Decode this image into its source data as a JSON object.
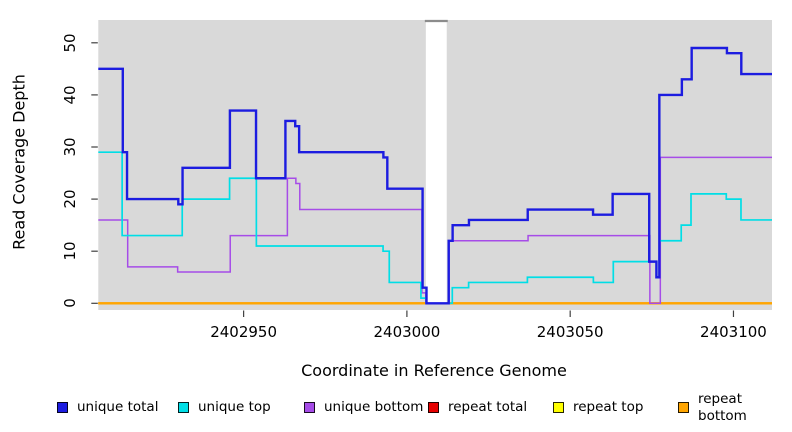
{
  "figure": {
    "x_axis_title": "Coordinate in Reference Genome",
    "y_axis_title": "Read Coverage Depth"
  },
  "chart_data": {
    "type": "line",
    "step": "post",
    "title": "",
    "xlabel": "Coordinate in Reference Genome",
    "ylabel": "Read Coverage Depth",
    "xlim": [
      2402905.5,
      2403111.8
    ],
    "ylim": [
      0,
      54.4
    ],
    "x_ticks": [
      2402950,
      2403000,
      2403050,
      2403100
    ],
    "y_ticks": [
      0,
      10,
      20,
      30,
      40,
      50
    ],
    "grid": false,
    "legend_position": "bottom",
    "plot_bg_color": "#D9D9D9",
    "gap_region": {
      "x_start": 2403005.8,
      "x_end": 2403012.2,
      "fill": "#FFFFFF",
      "top_edge_color": "#8C8C8C"
    },
    "draw_order": [
      "repeat total",
      "repeat top",
      "repeat bottom",
      "gap",
      "unique bottom",
      "unique top",
      "unique total"
    ],
    "series": [
      {
        "name": "unique total",
        "color": "#1C1CE0",
        "line_width": 2.4,
        "points": [
          [
            2402905.5,
            45
          ],
          [
            2402913,
            29
          ],
          [
            2402914.3,
            20
          ],
          [
            2402930,
            19
          ],
          [
            2402931.3,
            26
          ],
          [
            2402945.8,
            37
          ],
          [
            2402953.8,
            24
          ],
          [
            2402962.8,
            35
          ],
          [
            2402965.8,
            34
          ],
          [
            2402967,
            29
          ],
          [
            2402992.8,
            28
          ],
          [
            2402994,
            22
          ],
          [
            2403004.8,
            3
          ],
          [
            2403006,
            0
          ],
          [
            2403012.8,
            12
          ],
          [
            2403014,
            15
          ],
          [
            2403019,
            16
          ],
          [
            2403037,
            18
          ],
          [
            2403057,
            17
          ],
          [
            2403063,
            21
          ],
          [
            2403074.2,
            8
          ],
          [
            2403076.4,
            5
          ],
          [
            2403077.3,
            40
          ],
          [
            2403084.2,
            43
          ],
          [
            2403087.2,
            49
          ],
          [
            2403098,
            48
          ],
          [
            2403102.4,
            44
          ]
        ]
      },
      {
        "name": "unique top",
        "color": "#00DEE6",
        "line_width": 1.7,
        "points": [
          [
            2402905.5,
            29
          ],
          [
            2402912.8,
            13
          ],
          [
            2402931.2,
            20
          ],
          [
            2402945.7,
            24
          ],
          [
            2402953.9,
            11
          ],
          [
            2402992.7,
            10
          ],
          [
            2402994.6,
            4
          ],
          [
            2403004.3,
            1
          ],
          [
            2403005.9,
            0
          ],
          [
            2403013.9,
            3
          ],
          [
            2403018.9,
            4
          ],
          [
            2403036.9,
            5
          ],
          [
            2403057.1,
            4
          ],
          [
            2403063.2,
            8
          ],
          [
            2403076.5,
            5
          ],
          [
            2403077.4,
            12
          ],
          [
            2403084,
            15
          ],
          [
            2403087,
            21
          ],
          [
            2403097.8,
            20
          ],
          [
            2403102.3,
            16
          ]
        ]
      },
      {
        "name": "unique bottom",
        "color": "#A64CE8",
        "line_width": 1.5,
        "points": [
          [
            2402905.5,
            16
          ],
          [
            2402914.5,
            7
          ],
          [
            2402929.8,
            6
          ],
          [
            2402945.9,
            13
          ],
          [
            2402963.4,
            24
          ],
          [
            2402966,
            23
          ],
          [
            2402967.2,
            18
          ],
          [
            2403004.6,
            2
          ],
          [
            2403005.8,
            0
          ],
          [
            2403012.9,
            12
          ],
          [
            2403037.1,
            13
          ],
          [
            2403074.4,
            0
          ],
          [
            2403077.6,
            28
          ]
        ]
      },
      {
        "name": "repeat total",
        "color": "#E60000",
        "line_width": 1.8,
        "points": [
          [
            2402905.5,
            0
          ]
        ]
      },
      {
        "name": "repeat top",
        "color": "#FFFF00",
        "line_width": 1.8,
        "points": [
          [
            2402905.5,
            0
          ]
        ]
      },
      {
        "name": "repeat bottom",
        "color": "#FFA500",
        "line_width": 2.4,
        "points": [
          [
            2402905.5,
            0
          ]
        ]
      }
    ],
    "legend": [
      {
        "label": "unique total",
        "color": "#1C1CE0"
      },
      {
        "label": "unique top",
        "color": "#00DEE6"
      },
      {
        "label": "unique bottom",
        "color": "#A64CE8"
      },
      {
        "label": "repeat total",
        "color": "#E60000"
      },
      {
        "label": "repeat top",
        "color": "#FFFF00"
      },
      {
        "label": "repeat bottom",
        "color": "#FFA500"
      }
    ]
  }
}
